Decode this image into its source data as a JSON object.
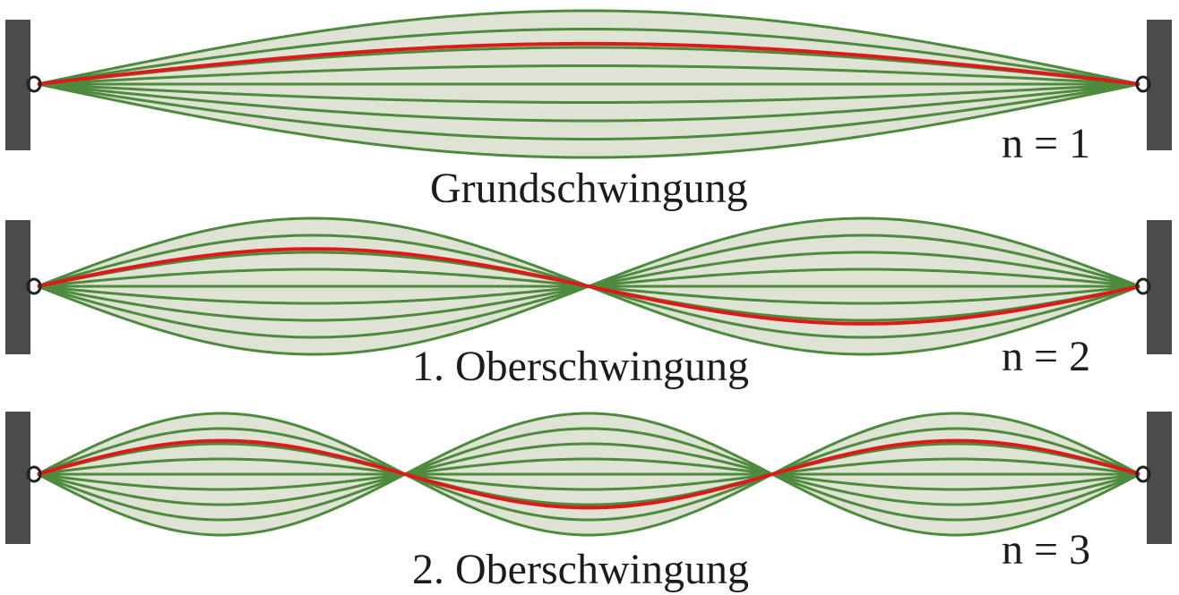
{
  "colors": {
    "envelope": "#dfe3d3",
    "curve": "#4e8a3e",
    "highlight": "#dd1a1a",
    "clamp": "#4b4b4b"
  },
  "modes": [
    {
      "n": 1,
      "name": "Grundschwingung",
      "n_label": "n = 1"
    },
    {
      "n": 2,
      "name": "1. Oberschwingung",
      "n_label": "n = 2"
    },
    {
      "n": 3,
      "name": "2. Oberschwingung",
      "n_label": "n = 3"
    }
  ]
}
